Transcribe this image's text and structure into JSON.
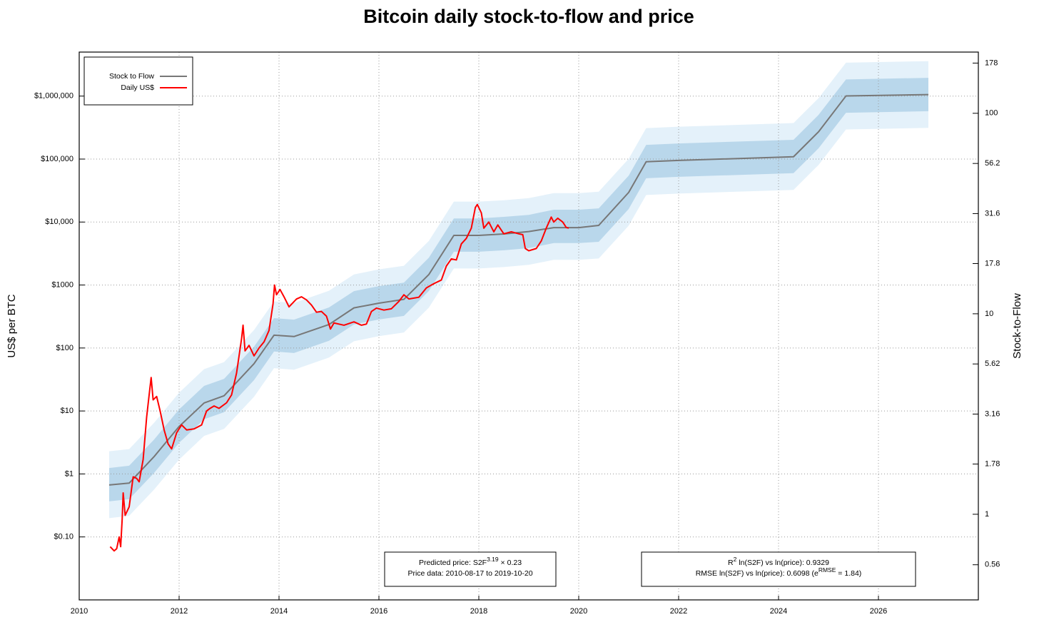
{
  "chart_data": {
    "type": "line",
    "title": "Bitcoin daily stock-to-flow and price",
    "ylabel": "US$ per BTC",
    "y2label": "Stock-to-Flow",
    "log_scale": true,
    "grid": true,
    "legend": "top-left",
    "xlim": [
      2010,
      2028
    ],
    "xticks": [
      2010,
      2012,
      2014,
      2016,
      2018,
      2020,
      2022,
      2024,
      2026
    ],
    "ylim": [
      0.01,
      5000000
    ],
    "yticks": [
      {
        "value": 0.1,
        "label": "$0.10"
      },
      {
        "value": 1,
        "label": "$1"
      },
      {
        "value": 10,
        "label": "$10"
      },
      {
        "value": 100,
        "label": "$100"
      },
      {
        "value": 1000,
        "label": "$1000"
      },
      {
        "value": 10000,
        "label": "$10,000"
      },
      {
        "value": 100000,
        "label": "$100,000"
      },
      {
        "value": 1000000,
        "label": "$1,000,000"
      }
    ],
    "y2lim": [
      0.374,
      202
    ],
    "y2ticks": [
      0.56,
      1,
      1.78,
      3.16,
      5.62,
      10,
      17.8,
      31.6,
      56.2,
      100,
      178
    ],
    "series": [
      {
        "name": "Stock to Flow",
        "color": "#777777",
        "axis": "y2",
        "x": [
          2010.6,
          2011.0,
          2011.5,
          2012.0,
          2012.5,
          2012.9,
          2013.5,
          2013.9,
          2014.3,
          2015.0,
          2015.5,
          2016.0,
          2016.5,
          2017.0,
          2017.5,
          2018.0,
          2018.5,
          2019.0,
          2019.5,
          2020.0,
          2020.4,
          2021.0,
          2021.35,
          2022.0,
          2024.3,
          2024.8,
          2025.35,
          2027.0
        ],
        "values": [
          1.4,
          1.43,
          1.94,
          2.74,
          3.59,
          3.9,
          5.64,
          7.82,
          7.7,
          8.84,
          10.7,
          11.3,
          11.8,
          15.7,
          24.6,
          24.6,
          25.0,
          25.7,
          26.9,
          26.9,
          27.6,
          40.3,
          57.3,
          58.2,
          60.7,
          80.8,
          122,
          124
        ]
      },
      {
        "name": "Daily US$",
        "color": "#ff0000",
        "x": [
          2010.62,
          2010.7,
          2010.75,
          2010.8,
          2010.83,
          2010.86,
          2010.88,
          2010.92,
          2011.0,
          2011.08,
          2011.15,
          2011.2,
          2011.28,
          2011.35,
          2011.4,
          2011.44,
          2011.48,
          2011.55,
          2011.62,
          2011.7,
          2011.78,
          2011.85,
          2011.95,
          2012.05,
          2012.15,
          2012.3,
          2012.45,
          2012.55,
          2012.62,
          2012.7,
          2012.8,
          2012.95,
          2013.05,
          2013.15,
          2013.25,
          2013.28,
          2013.32,
          2013.4,
          2013.5,
          2013.6,
          2013.7,
          2013.8,
          2013.88,
          2013.91,
          2013.95,
          2014.02,
          2014.1,
          2014.2,
          2014.35,
          2014.45,
          2014.55,
          2014.65,
          2014.75,
          2014.85,
          2014.95,
          2015.03,
          2015.1,
          2015.3,
          2015.5,
          2015.65,
          2015.75,
          2015.85,
          2015.95,
          2016.1,
          2016.25,
          2016.4,
          2016.5,
          2016.6,
          2016.8,
          2016.95,
          2017.05,
          2017.15,
          2017.25,
          2017.35,
          2017.45,
          2017.55,
          2017.65,
          2017.75,
          2017.85,
          2017.93,
          2017.97,
          2018.05,
          2018.1,
          2018.2,
          2018.3,
          2018.38,
          2018.5,
          2018.65,
          2018.8,
          2018.88,
          2018.93,
          2019.0,
          2019.15,
          2019.25,
          2019.35,
          2019.45,
          2019.5,
          2019.58,
          2019.68,
          2019.75,
          2019.8
        ],
        "values": [
          0.07,
          0.06,
          0.065,
          0.1,
          0.07,
          0.19,
          0.5,
          0.22,
          0.3,
          0.9,
          0.85,
          0.75,
          1.7,
          8,
          18,
          34,
          15,
          17,
          10,
          5,
          3,
          2.5,
          4.5,
          6,
          5,
          5.2,
          6,
          10,
          11,
          12,
          11,
          13.5,
          18,
          40,
          140,
          230,
          90,
          110,
          75,
          100,
          125,
          190,
          500,
          1000,
          700,
          850,
          650,
          450,
          600,
          650,
          580,
          480,
          370,
          380,
          320,
          200,
          250,
          230,
          260,
          230,
          240,
          380,
          430,
          400,
          420,
          550,
          700,
          600,
          640,
          900,
          1000,
          1100,
          1200,
          2000,
          2600,
          2500,
          4500,
          5500,
          8000,
          17000,
          19000,
          14000,
          8000,
          10000,
          7000,
          9000,
          6500,
          7000,
          6500,
          6300,
          3800,
          3500,
          3800,
          5000,
          8000,
          12000,
          10000,
          11500,
          10000,
          8200,
          8000
        ]
      }
    ],
    "bands": [
      {
        "color": "#e4f1fa",
        "x": [
          2010.6,
          2011.0,
          2011.5,
          2012.0,
          2012.5,
          2012.9,
          2013.5,
          2013.9,
          2014.3,
          2015.0,
          2015.5,
          2016.0,
          2016.5,
          2017.0,
          2017.5,
          2018.0,
          2018.5,
          2019.0,
          2019.5,
          2020.0,
          2020.4,
          2021.0,
          2021.35,
          2022.0,
          2024.3,
          2024.8,
          2025.35,
          2027.0
        ],
        "lower": [
          0.199,
          0.216,
          0.566,
          1.69,
          4.01,
          5.19,
          16.8,
          47.8,
          45.1,
          70.5,
          128,
          154,
          176,
          437,
          1830,
          1830,
          1930,
          2090,
          2510,
          2510,
          2640,
          8760,
          26900,
          28300,
          32400,
          80500,
          295000,
          313000
        ],
        "upper": [
          2.29,
          2.48,
          6.51,
          19.5,
          46.1,
          59.7,
          193,
          549,
          519,
          810,
          1470,
          1770,
          2020,
          5020,
          21100,
          21100,
          22200,
          24000,
          28800,
          28800,
          30300,
          101000,
          310000,
          326000,
          373000,
          925000,
          3390000,
          3590000
        ]
      },
      {
        "color": "#b9d7eb",
        "x": [
          2010.6,
          2011.0,
          2011.5,
          2012.0,
          2012.5,
          2012.9,
          2013.5,
          2013.9,
          2014.3,
          2015.0,
          2015.5,
          2016.0,
          2016.5,
          2017.0,
          2017.5,
          2018.0,
          2018.5,
          2019.0,
          2019.5,
          2020.0,
          2020.4,
          2021.0,
          2021.35,
          2022.0,
          2024.3,
          2024.8,
          2025.35,
          2027.0
        ],
        "lower": [
          0.367,
          0.398,
          1.04,
          3.12,
          7.39,
          9.57,
          30.9,
          88.0,
          83.2,
          130,
          236,
          284,
          323,
          804,
          3380,
          3380,
          3560,
          3850,
          4630,
          4630,
          4860,
          16100,
          49600,
          52200,
          59800,
          148000,
          543000,
          576000
        ],
        "upper": [
          1.24,
          1.35,
          3.53,
          10.6,
          25.0,
          32.4,
          105,
          298,
          282,
          440,
          800,
          960,
          1090,
          2720,
          11400,
          11400,
          12100,
          13000,
          15700,
          15700,
          16500,
          54600,
          168000,
          177000,
          202000,
          502000,
          1840000,
          1950000
        ]
      }
    ],
    "annotations": [
      {
        "lines": [
          [
            "Predicted price: S2F",
            "3.19",
            " × 0.23"
          ],
          [
            "Price data: 2010-08-17 to 2019-10-20"
          ]
        ]
      },
      {
        "lines": [
          [
            "R",
            "2",
            " ln(S2F) vs ln(price): 0.9329"
          ],
          [
            "RMSE ln(S2F) vs ln(price): 0.6098 (e",
            "RMSE",
            " = 1.84)"
          ]
        ]
      }
    ]
  }
}
